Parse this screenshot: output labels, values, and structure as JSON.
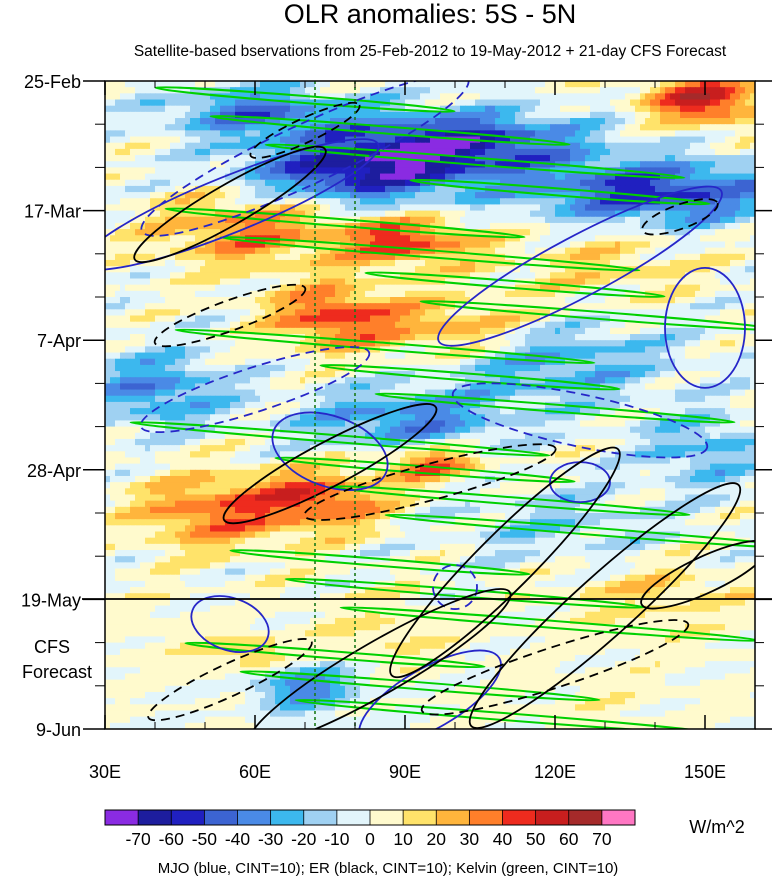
{
  "chart_data": {
    "type": "heatmap",
    "title": "OLR anomalies: 5S - 5N",
    "subtitle": "Satellite-based bservations from 25-Feb-2012 to 19-May-2012 + 21-day CFS Forecast",
    "x_axis": {
      "range": [
        30,
        160
      ],
      "tick_values": [
        30,
        60,
        90,
        120,
        150
      ],
      "tick_labels": [
        "30E",
        "60E",
        "90E",
        "120E",
        "150E"
      ]
    },
    "y_axis": {
      "reversed": true,
      "tick_labels": [
        "25-Feb",
        "17-Mar",
        "7-Apr",
        "28-Apr",
        "19-May",
        "9-Jun"
      ],
      "tick_days": [
        0,
        21,
        42,
        63,
        84,
        105
      ]
    },
    "forecast_label": [
      "CFS",
      "Forecast"
    ],
    "colorbar": {
      "unit": "W/m^2",
      "labels": [
        "-70",
        "-60",
        "-50",
        "-40",
        "-30",
        "-20",
        "-10",
        "0",
        "10",
        "20",
        "30",
        "40",
        "50",
        "60",
        "70"
      ],
      "colors": [
        "#8a2be2",
        "#1d1d9e",
        "#2020c0",
        "#3c64d2",
        "#4a8ae6",
        "#3cb8ee",
        "#9fd1f2",
        "#e2f5fb",
        "#fffacd",
        "#ffe36a",
        "#ffb53c",
        "#ff7f2a",
        "#ee2b1e",
        "#c81e1e",
        "#a52a2a",
        "#ff77c3"
      ]
    },
    "reference_lines_lon": [
      72,
      80
    ],
    "caption": "MJO (blue, CINT=10); ER (black, CINT=10); Kelvin (green, CINT=10)"
  }
}
